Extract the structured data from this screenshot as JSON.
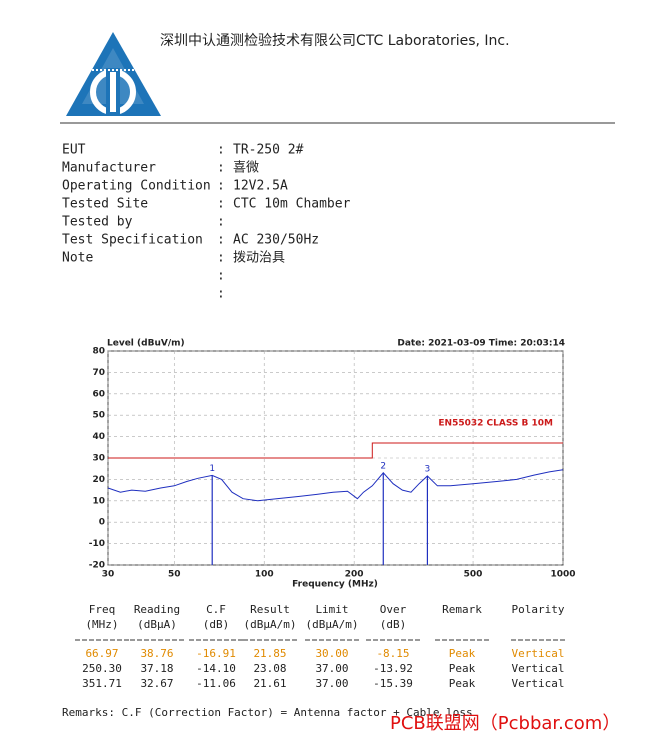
{
  "header": {
    "company": "深圳中认通测检验技术有限公司CTC Laboratories, Inc."
  },
  "info": {
    "separator": ":",
    "rows": [
      {
        "label": "EUT",
        "value": "TR-250 2#"
      },
      {
        "label": "Manufacturer",
        "value": "喜微"
      },
      {
        "label": "Operating Condition",
        "value": "12V2.5A"
      },
      {
        "label": "Tested Site",
        "value": "CTC 10m Chamber"
      },
      {
        "label": "Tested by"
      },
      {
        "label": "Test Specification",
        "value": "AC 230/50Hz"
      },
      {
        "label": "Note",
        "value": "拨动治具"
      },
      {},
      {}
    ]
  },
  "chart_data": {
    "type": "line",
    "y_label": "Level (dBuV/m)",
    "x_label": "Frequency (MHz)",
    "date": "Date: 2021-03-09 Time: 20:03:14",
    "xlog": true,
    "grid": true,
    "xlim": [
      30,
      1000
    ],
    "xticks": [
      30,
      50,
      100,
      200,
      500,
      1000
    ],
    "ylim": [
      -20,
      80
    ],
    "yticks": [
      -20,
      -10,
      0,
      10,
      20,
      30,
      40,
      50,
      60,
      70,
      80
    ],
    "series": [
      {
        "color": "#1f2fbf",
        "x": [
          30,
          33,
          36,
          40,
          45,
          50,
          55,
          60,
          66.97,
          72,
          78,
          85,
          95,
          110,
          130,
          150,
          170,
          190,
          205,
          215,
          230,
          250.3,
          270,
          290,
          310,
          330,
          351.71,
          380,
          420,
          500,
          600,
          700,
          800,
          900,
          1000
        ],
        "values": [
          16,
          14,
          15,
          14.5,
          16,
          17,
          19,
          20.5,
          21.85,
          20,
          14,
          11,
          10,
          11,
          12,
          13,
          14,
          14.5,
          11,
          14,
          17,
          23.08,
          18,
          15,
          14,
          18,
          21.61,
          17,
          17,
          18,
          19,
          20,
          22,
          23.5,
          24.5
        ]
      },
      {
        "name": "EN55032 CLASS B 10M",
        "color": "#cc1a1a",
        "x": [
          30,
          230,
          230,
          1000
        ],
        "values": [
          30,
          30,
          37,
          37
        ]
      }
    ],
    "markers": [
      {
        "label": "1",
        "x": 66.97,
        "y": 21.85
      },
      {
        "label": "2",
        "x": 250.3,
        "y": 23.08
      },
      {
        "label": "3",
        "x": 351.71,
        "y": 21.61
      }
    ],
    "marker_color": "#1f2fbf"
  },
  "table": {
    "columns": [
      {
        "name": "Freq",
        "unit": "(MHz)"
      },
      {
        "name": "Reading",
        "unit": "(dBµA)"
      },
      {
        "name": "C.F",
        "unit": "(dB)"
      },
      {
        "name": "Result",
        "unit": "(dBµA/m)"
      },
      {
        "name": "Limit",
        "unit": "(dBµA/m)"
      },
      {
        "name": "Over",
        "unit": "(dB)"
      },
      {
        "name": "Remark"
      },
      {
        "name": "Polarity"
      }
    ],
    "rows": [
      [
        "66.97",
        "38.76",
        "-16.91",
        "21.85",
        "30.00",
        "-8.15",
        "Peak",
        "Vertical"
      ],
      [
        "250.30",
        "37.18",
        "-14.10",
        "23.08",
        "37.00",
        "-13.92",
        "Peak",
        "Vertical"
      ],
      [
        "351.71",
        "32.67",
        "-11.06",
        "21.61",
        "37.00",
        "-15.39",
        "Peak",
        "Vertical"
      ]
    ],
    "highlight_row": 0,
    "highlight_color": "#e08a00"
  },
  "remarks": "Remarks:  C.F (Correction Factor) = Antenna factor + Cable loss",
  "watermark": "PCB联盟网（Pcbbar.com）"
}
